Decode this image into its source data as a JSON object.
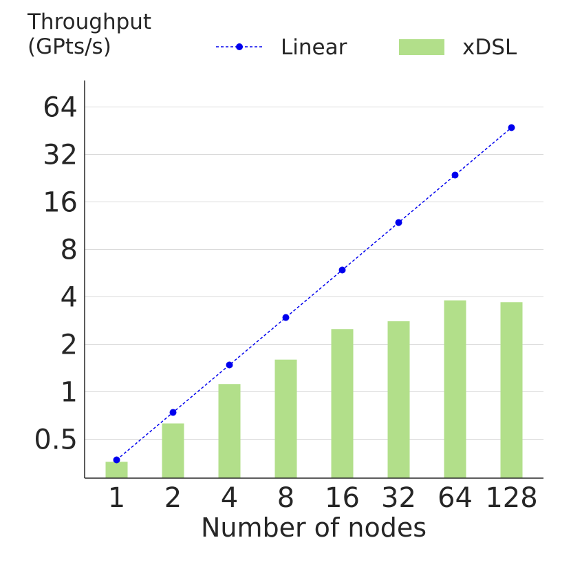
{
  "chart_data": {
    "type": "bar",
    "ylabel_lines": [
      "Throughput",
      "(GPts/s)"
    ],
    "xlabel": "Number of nodes",
    "categories": [
      "1",
      "2",
      "4",
      "8",
      "16",
      "32",
      "64",
      "128"
    ],
    "yscale": "log2",
    "ylim": [
      0.22,
      90
    ],
    "yticks": [
      0.5,
      1,
      2,
      4,
      8,
      16,
      32,
      64
    ],
    "ytick_labels": [
      "0.5",
      "1",
      "2",
      "4",
      "8",
      "16",
      "32",
      "64"
    ],
    "grid": "horizontal",
    "legend_placement": "top",
    "series": [
      {
        "name": "Linear",
        "kind": "line",
        "style": "dashed with dot markers",
        "color": "#0000ee",
        "values": [
          0.37,
          0.74,
          1.48,
          2.96,
          5.92,
          11.84,
          23.68,
          47.36
        ]
      },
      {
        "name": "xDSL",
        "kind": "bar",
        "color": "#b2df8a",
        "values": [
          0.36,
          0.63,
          1.12,
          1.6,
          2.5,
          2.8,
          3.8,
          3.7
        ]
      }
    ]
  }
}
